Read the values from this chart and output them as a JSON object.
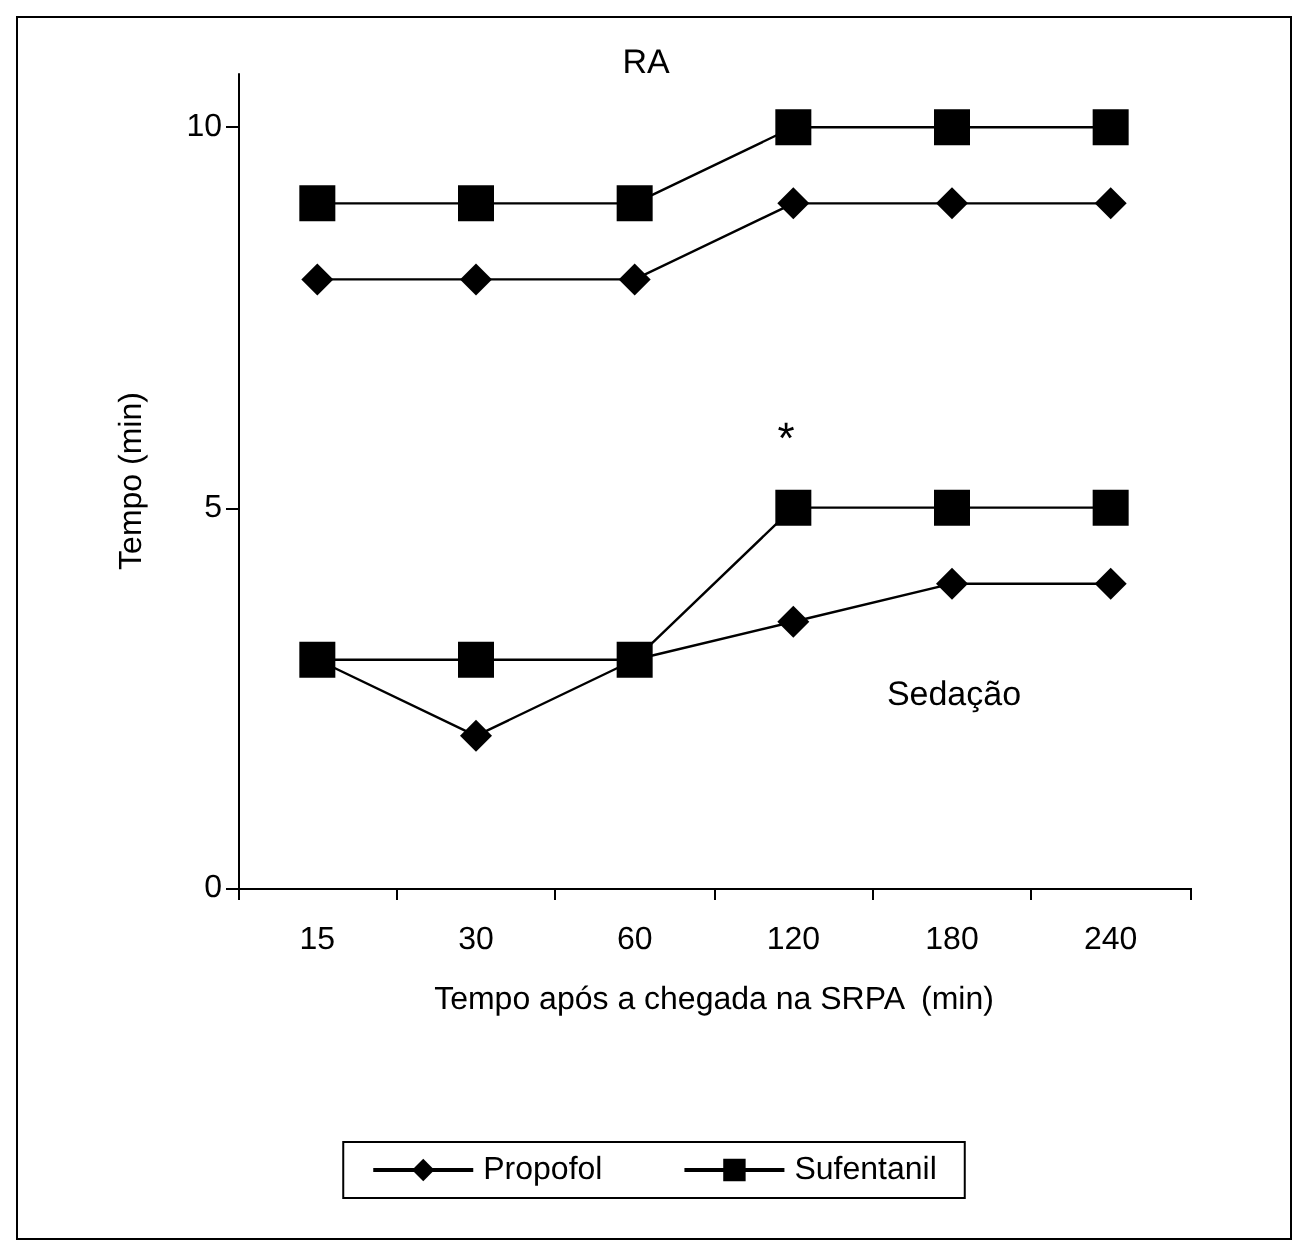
{
  "chart_data": {
    "type": "line",
    "xlabel": "Tempo após a chegada na SRPA  (min)",
    "ylabel": "Tempo (min)",
    "categories": [
      "15",
      "30",
      "60",
      "120",
      "180",
      "240"
    ],
    "ylim": [
      0,
      10.7
    ],
    "yticks": [
      0,
      5,
      10
    ],
    "grid": false,
    "legend": "bottom",
    "line_style": "solid",
    "series": [
      {
        "name": "Propofol",
        "color": "#000000",
        "marker": "diamond",
        "values": [
          8,
          8,
          8,
          9,
          9,
          9
        ]
      },
      {
        "name": "Sufentanil",
        "color": "#000000",
        "marker": "square",
        "values": [
          9,
          9,
          9,
          10,
          10,
          10
        ]
      },
      {
        "color": "#000000",
        "marker": "square",
        "values": [
          3,
          3,
          3,
          5,
          5,
          5
        ]
      },
      {
        "color": "#000000",
        "marker": "diamond",
        "values": [
          3,
          2,
          3,
          3.5,
          4,
          4
        ]
      }
    ],
    "annotations": [
      "RA",
      "*",
      "Sedação"
    ]
  }
}
